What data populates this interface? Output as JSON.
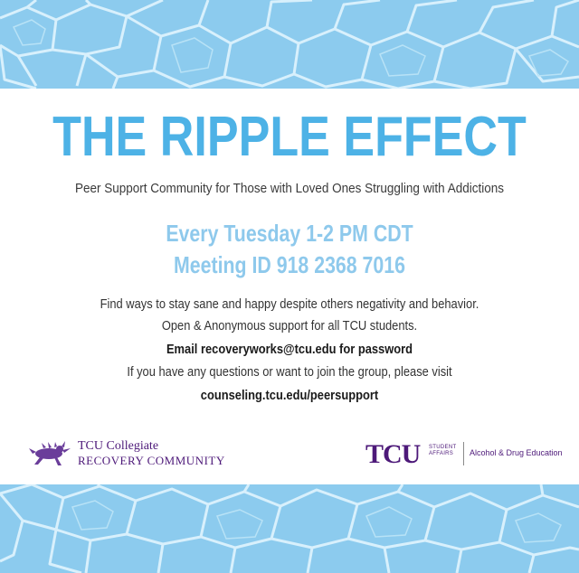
{
  "title": "THE RIPPLE EFFECT",
  "subtitle": "Peer Support Community for Those with Loved Ones Struggling with Addictions",
  "schedule": {
    "time": "Every Tuesday 1-2 PM CDT",
    "meeting_id": "Meeting ID 918 2368 7016"
  },
  "body": {
    "line1": "Find ways to stay sane and happy despite others negativity and behavior.",
    "line2": "Open & Anonymous support for all TCU students.",
    "line3": "Email recoveryworks@tcu.edu for password",
    "line4": "If you have any questions or want to join the group, please visit",
    "line5": "counseling.tcu.edu/peersupport"
  },
  "logos": {
    "left_line1": "TCU Collegiate",
    "left_line2": "RECOVERY COMMUNITY",
    "right_mark": "TCU",
    "right_sa_line1": "STUDENT",
    "right_sa_line2": "AFFAIRS",
    "right_dept": "Alcohol & Drug Education"
  },
  "colors": {
    "title": "#4db2e6",
    "schedule": "#8ec9ec",
    "purple": "#4d1979",
    "water": "#8ccbee"
  }
}
